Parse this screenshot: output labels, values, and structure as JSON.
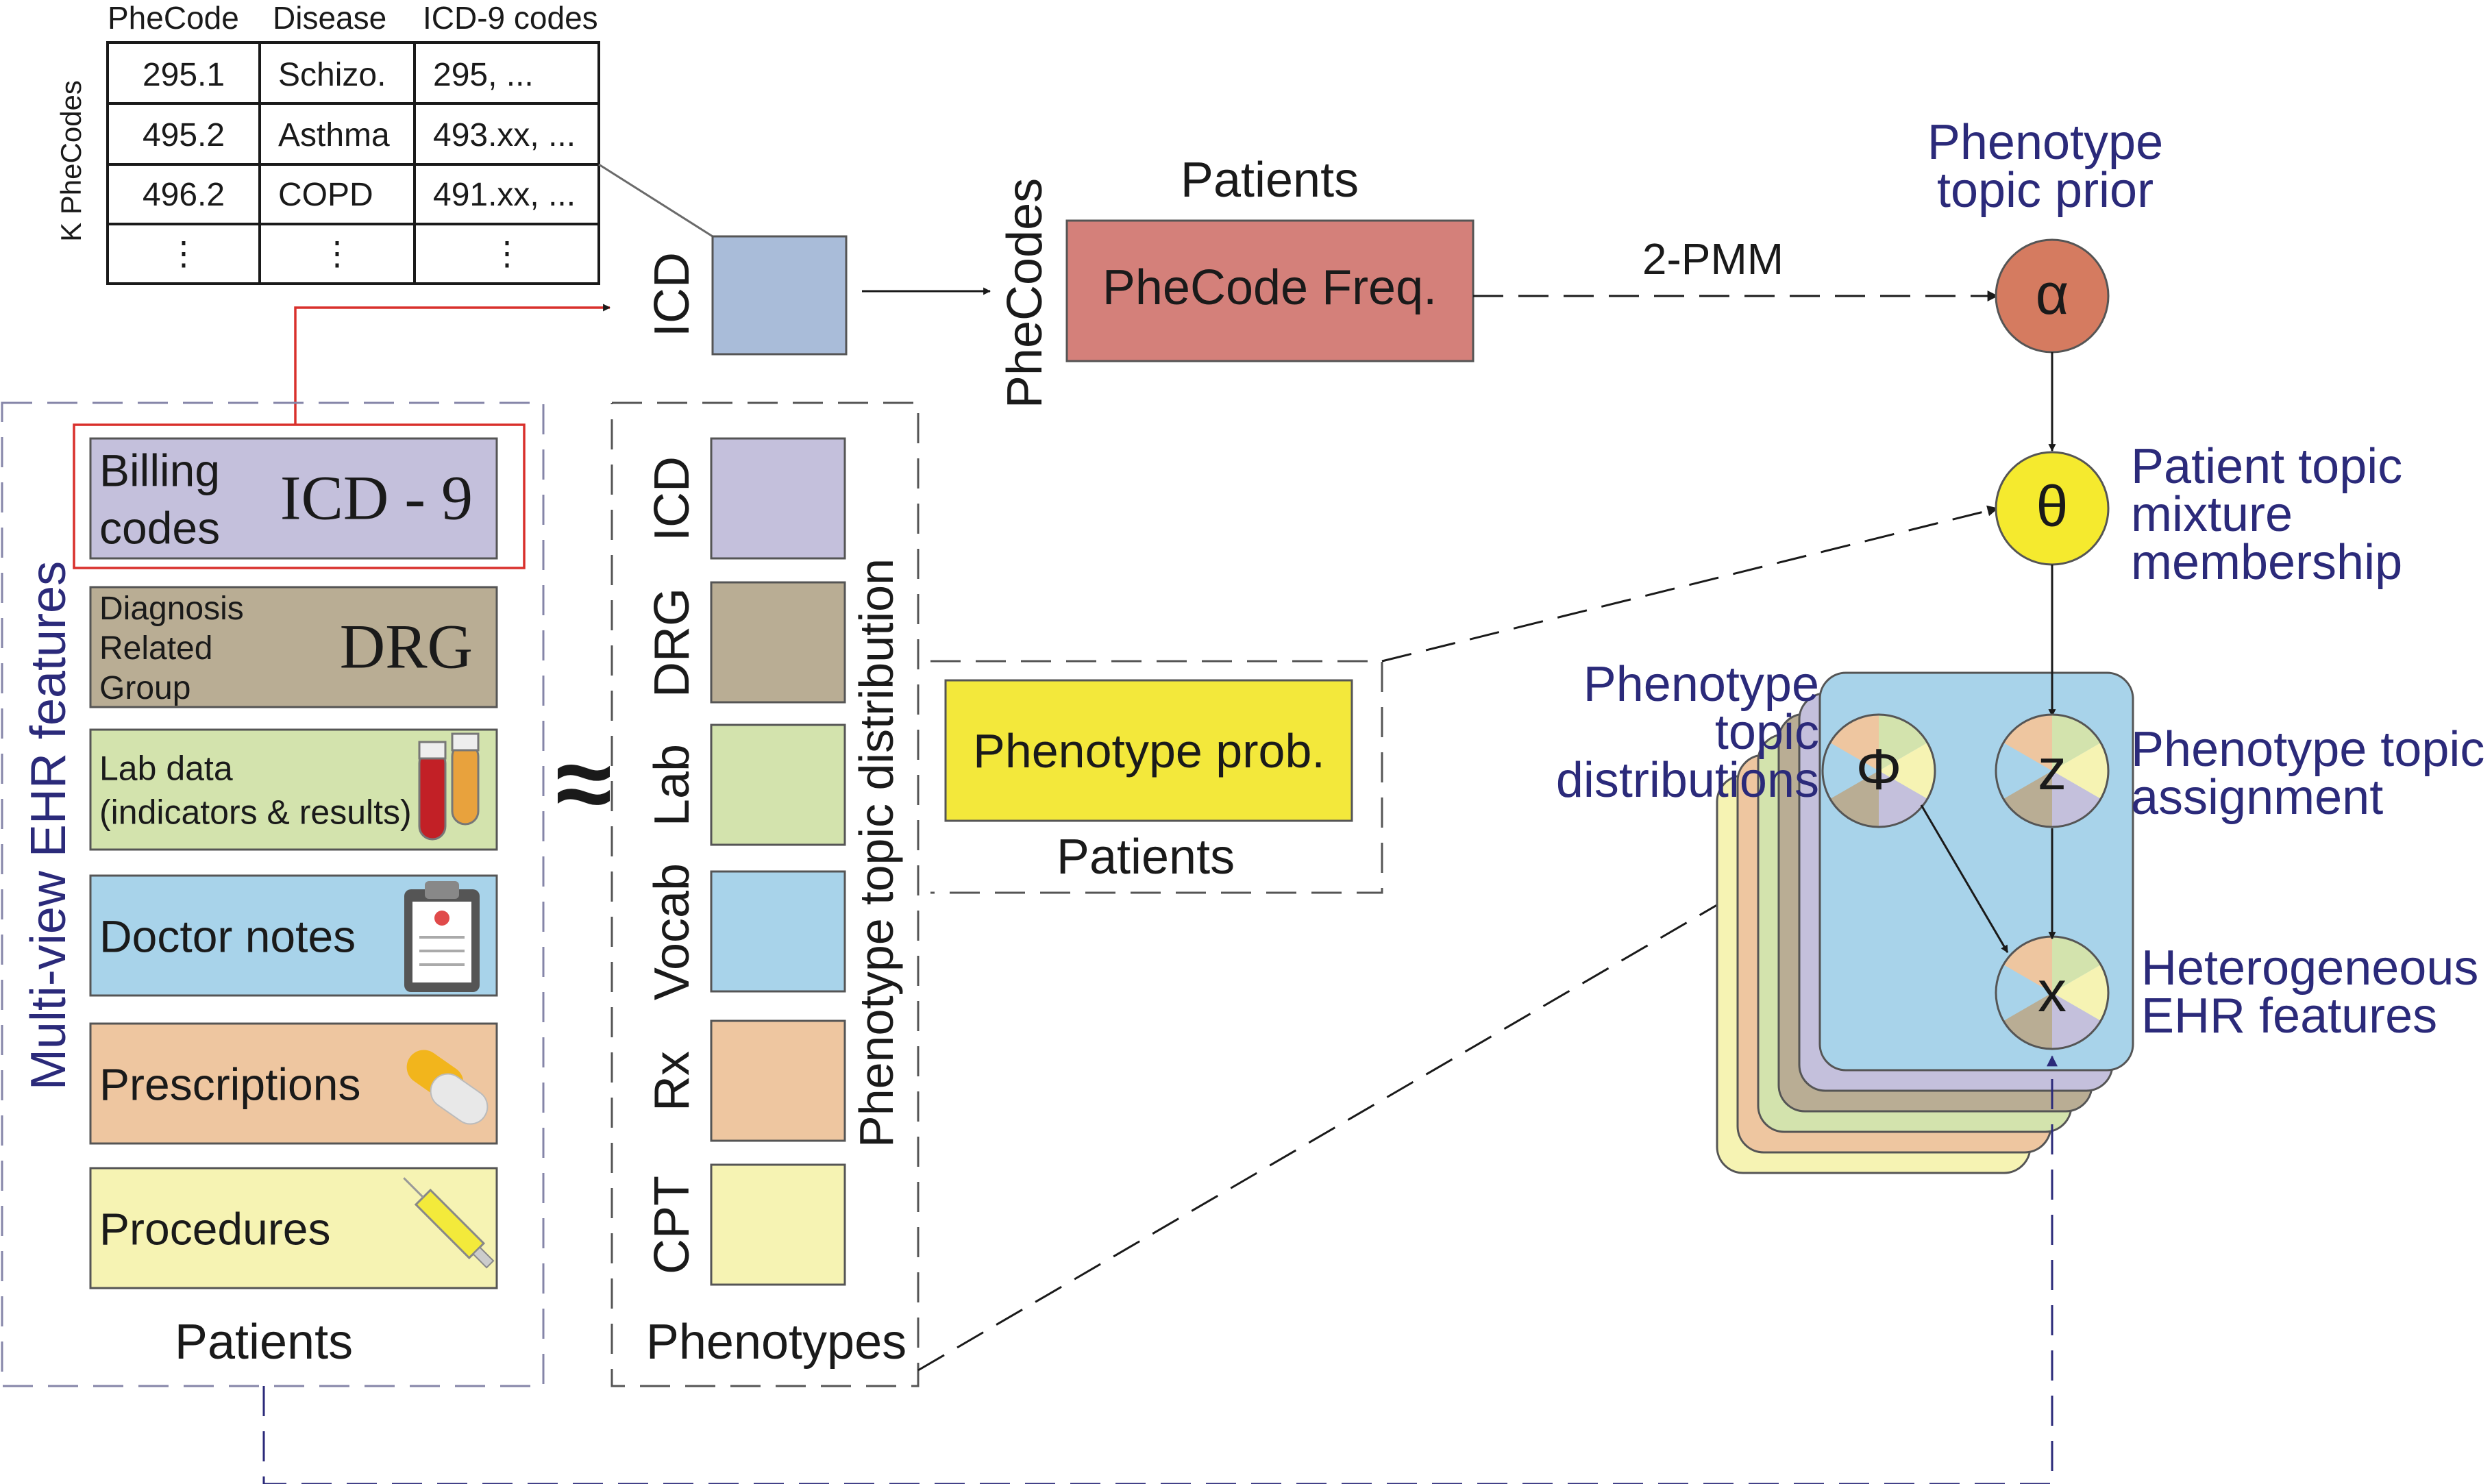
{
  "phecode_table": {
    "headers": [
      "PheCode",
      "Disease",
      "ICD-9 codes"
    ],
    "rows": [
      [
        "295.1",
        "Schizo.",
        "295, ..."
      ],
      [
        "495.2",
        "Asthma",
        "493.xx, ..."
      ],
      [
        "496.2",
        "COPD",
        "491.xx, ..."
      ],
      [
        "⋮",
        "⋮",
        "⋮"
      ]
    ],
    "row_axis_label": "K PheCodes"
  },
  "ehr_features": {
    "title": "Multi-view EHR features",
    "footer": "Patients",
    "views": [
      {
        "label": "Billing\ncodes",
        "tag": "ICD - 9",
        "color": "#c4c0dc",
        "icon": "none"
      },
      {
        "label": "Diagnosis\nRelated\nGroup",
        "tag": "DRG",
        "color": "#b9ad94",
        "icon": "none"
      },
      {
        "label": "Lab data\n(indicators & results)",
        "tag": "",
        "color": "#d3e3ad",
        "icon": "test-tubes-icon"
      },
      {
        "label": "Doctor notes",
        "tag": "",
        "color": "#a8d3ea",
        "icon": "clipboard-icon"
      },
      {
        "label": "Prescriptions",
        "tag": "",
        "color": "#eec6a0",
        "icon": "pills-icon"
      },
      {
        "label": "Procedures",
        "tag": "",
        "color": "#f6f3b3",
        "icon": "syringe-icon"
      }
    ]
  },
  "approx_symbol": "≈",
  "phenotype_dist": {
    "title": "Phenotype topic distribution",
    "footer": "Phenotypes",
    "rows": [
      {
        "label": "ICD",
        "color": "#c4c0dc"
      },
      {
        "label": "DRG",
        "color": "#b9ad94"
      },
      {
        "label": "Lab",
        "color": "#d3e3ad"
      },
      {
        "label": "Vocab",
        "color": "#a8d3ea"
      },
      {
        "label": "Rx",
        "color": "#eec6a0"
      },
      {
        "label": "CPT",
        "color": "#f6f3b3"
      }
    ]
  },
  "icd_input": {
    "label": "ICD",
    "color": "#a9bcd9"
  },
  "phecode_freq": {
    "label": "PheCode Freq.",
    "row_label": "PheCodes",
    "col_label": "Patients",
    "color": "#d4807a"
  },
  "phenotype_prob": {
    "label": "Phenotype prob.",
    "col_label": "Patients",
    "color": "#f3e83b"
  },
  "edge_labels": {
    "pmm": "2-PMM"
  },
  "nodes": {
    "alpha": {
      "symbol": "α",
      "caption": "Phenotype\ntopic prior",
      "color": "#d57b60"
    },
    "theta": {
      "symbol": "θ",
      "caption": "Patient topic\nmixture\nmembership",
      "color": "#f5ea2e"
    },
    "phi": {
      "symbol": "Φ",
      "caption": "Phenotype\ntopic\ndistributions"
    },
    "z": {
      "symbol": "z",
      "caption": "Phenotype topic\nassignment"
    },
    "x": {
      "symbol": "x",
      "caption": "Heterogeneous\nEHR features"
    }
  },
  "plate": {
    "layer_colors": [
      "#f6f3b3",
      "#eec6a0",
      "#d3e3ad",
      "#b9ad94",
      "#c4c0dc",
      "#a8d3ea"
    ]
  },
  "pie_colors": [
    "#d3e3ad",
    "#f6f3b3",
    "#c4c0dc",
    "#b9ad94",
    "#a8d3ea",
    "#eec6a0"
  ],
  "colors": {
    "caption": "#2b2a7a",
    "red_line": "#d9302c"
  }
}
